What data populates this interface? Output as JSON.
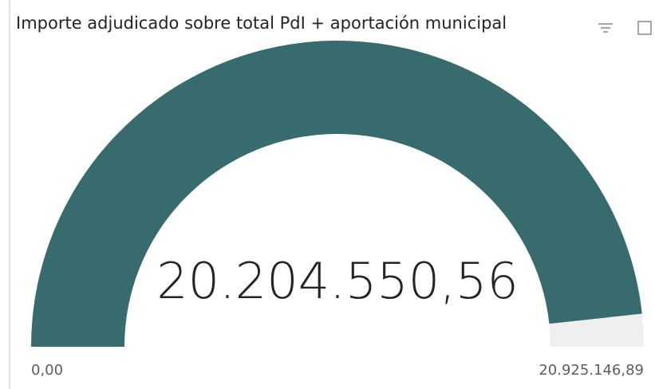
{
  "chart_data": {
    "type": "gauge",
    "title": "Importe adjudicado sobre total PdI + aportación municipal",
    "values": [
      20204550.56
    ],
    "value_labels": [
      "20.204.550,56"
    ],
    "ylim": [
      0,
      20925146.89
    ],
    "yticks": [
      {
        "value": 0,
        "label": "0,00"
      },
      {
        "value": 20925146.89,
        "label": "20.925.146,89"
      }
    ],
    "color": "#376b6e",
    "track_color": "#efefef"
  }
}
